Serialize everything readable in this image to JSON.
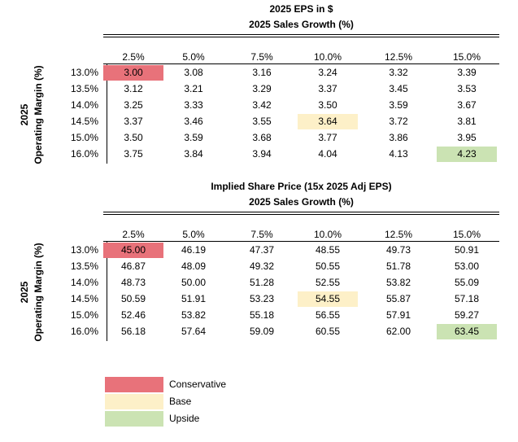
{
  "colors": {
    "conservative": "#E8727A",
    "base": "#FDF0C8",
    "upside": "#CBE3B3"
  },
  "tables": [
    {
      "title": "2025 EPS in $",
      "subtitle": "2025 Sales Growth (%)",
      "row_label_line1": "2025",
      "row_label_line2": "Operating Margin (%)",
      "columns": [
        "2.5%",
        "5.0%",
        "7.5%",
        "10.0%",
        "12.5%",
        "15.0%"
      ],
      "rows": [
        {
          "label": "13.0%",
          "values": [
            "3.00",
            "3.08",
            "3.16",
            "3.24",
            "3.32",
            "3.39"
          ]
        },
        {
          "label": "13.5%",
          "values": [
            "3.12",
            "3.21",
            "3.29",
            "3.37",
            "3.45",
            "3.53"
          ]
        },
        {
          "label": "14.0%",
          "values": [
            "3.25",
            "3.33",
            "3.42",
            "3.50",
            "3.59",
            "3.67"
          ]
        },
        {
          "label": "14.5%",
          "values": [
            "3.37",
            "3.46",
            "3.55",
            "3.64",
            "3.72",
            "3.81"
          ]
        },
        {
          "label": "15.0%",
          "values": [
            "3.50",
            "3.59",
            "3.68",
            "3.77",
            "3.86",
            "3.95"
          ]
        },
        {
          "label": "16.0%",
          "values": [
            "3.75",
            "3.84",
            "3.94",
            "4.04",
            "4.13",
            "4.23"
          ]
        }
      ]
    },
    {
      "title": "Implied Share Price (15x 2025 Adj EPS)",
      "subtitle": "2025 Sales Growth (%)",
      "row_label_line1": "2025",
      "row_label_line2": "Operating Margin (%)",
      "columns": [
        "2.5%",
        "5.0%",
        "7.5%",
        "10.0%",
        "12.5%",
        "15.0%"
      ],
      "rows": [
        {
          "label": "13.0%",
          "values": [
            "45.00",
            "46.19",
            "47.37",
            "48.55",
            "49.73",
            "50.91"
          ]
        },
        {
          "label": "13.5%",
          "values": [
            "46.87",
            "48.09",
            "49.32",
            "50.55",
            "51.78",
            "53.00"
          ]
        },
        {
          "label": "14.0%",
          "values": [
            "48.73",
            "50.00",
            "51.28",
            "52.55",
            "53.82",
            "55.09"
          ]
        },
        {
          "label": "14.5%",
          "values": [
            "50.59",
            "51.91",
            "53.23",
            "54.55",
            "55.87",
            "57.18"
          ]
        },
        {
          "label": "15.0%",
          "values": [
            "52.46",
            "53.82",
            "55.18",
            "56.55",
            "57.91",
            "59.27"
          ]
        },
        {
          "label": "16.0%",
          "values": [
            "56.18",
            "57.64",
            "59.09",
            "60.55",
            "62.00",
            "63.45"
          ]
        }
      ]
    }
  ],
  "highlights": [
    {
      "row": 0,
      "col": 0,
      "scenario": "conservative"
    },
    {
      "row": 3,
      "col": 3,
      "scenario": "base"
    },
    {
      "row": 5,
      "col": 5,
      "scenario": "upside"
    }
  ],
  "legend": [
    {
      "label": "Conservative",
      "scenario": "conservative"
    },
    {
      "label": "Base",
      "scenario": "base"
    },
    {
      "label": "Upside",
      "scenario": "upside"
    }
  ]
}
